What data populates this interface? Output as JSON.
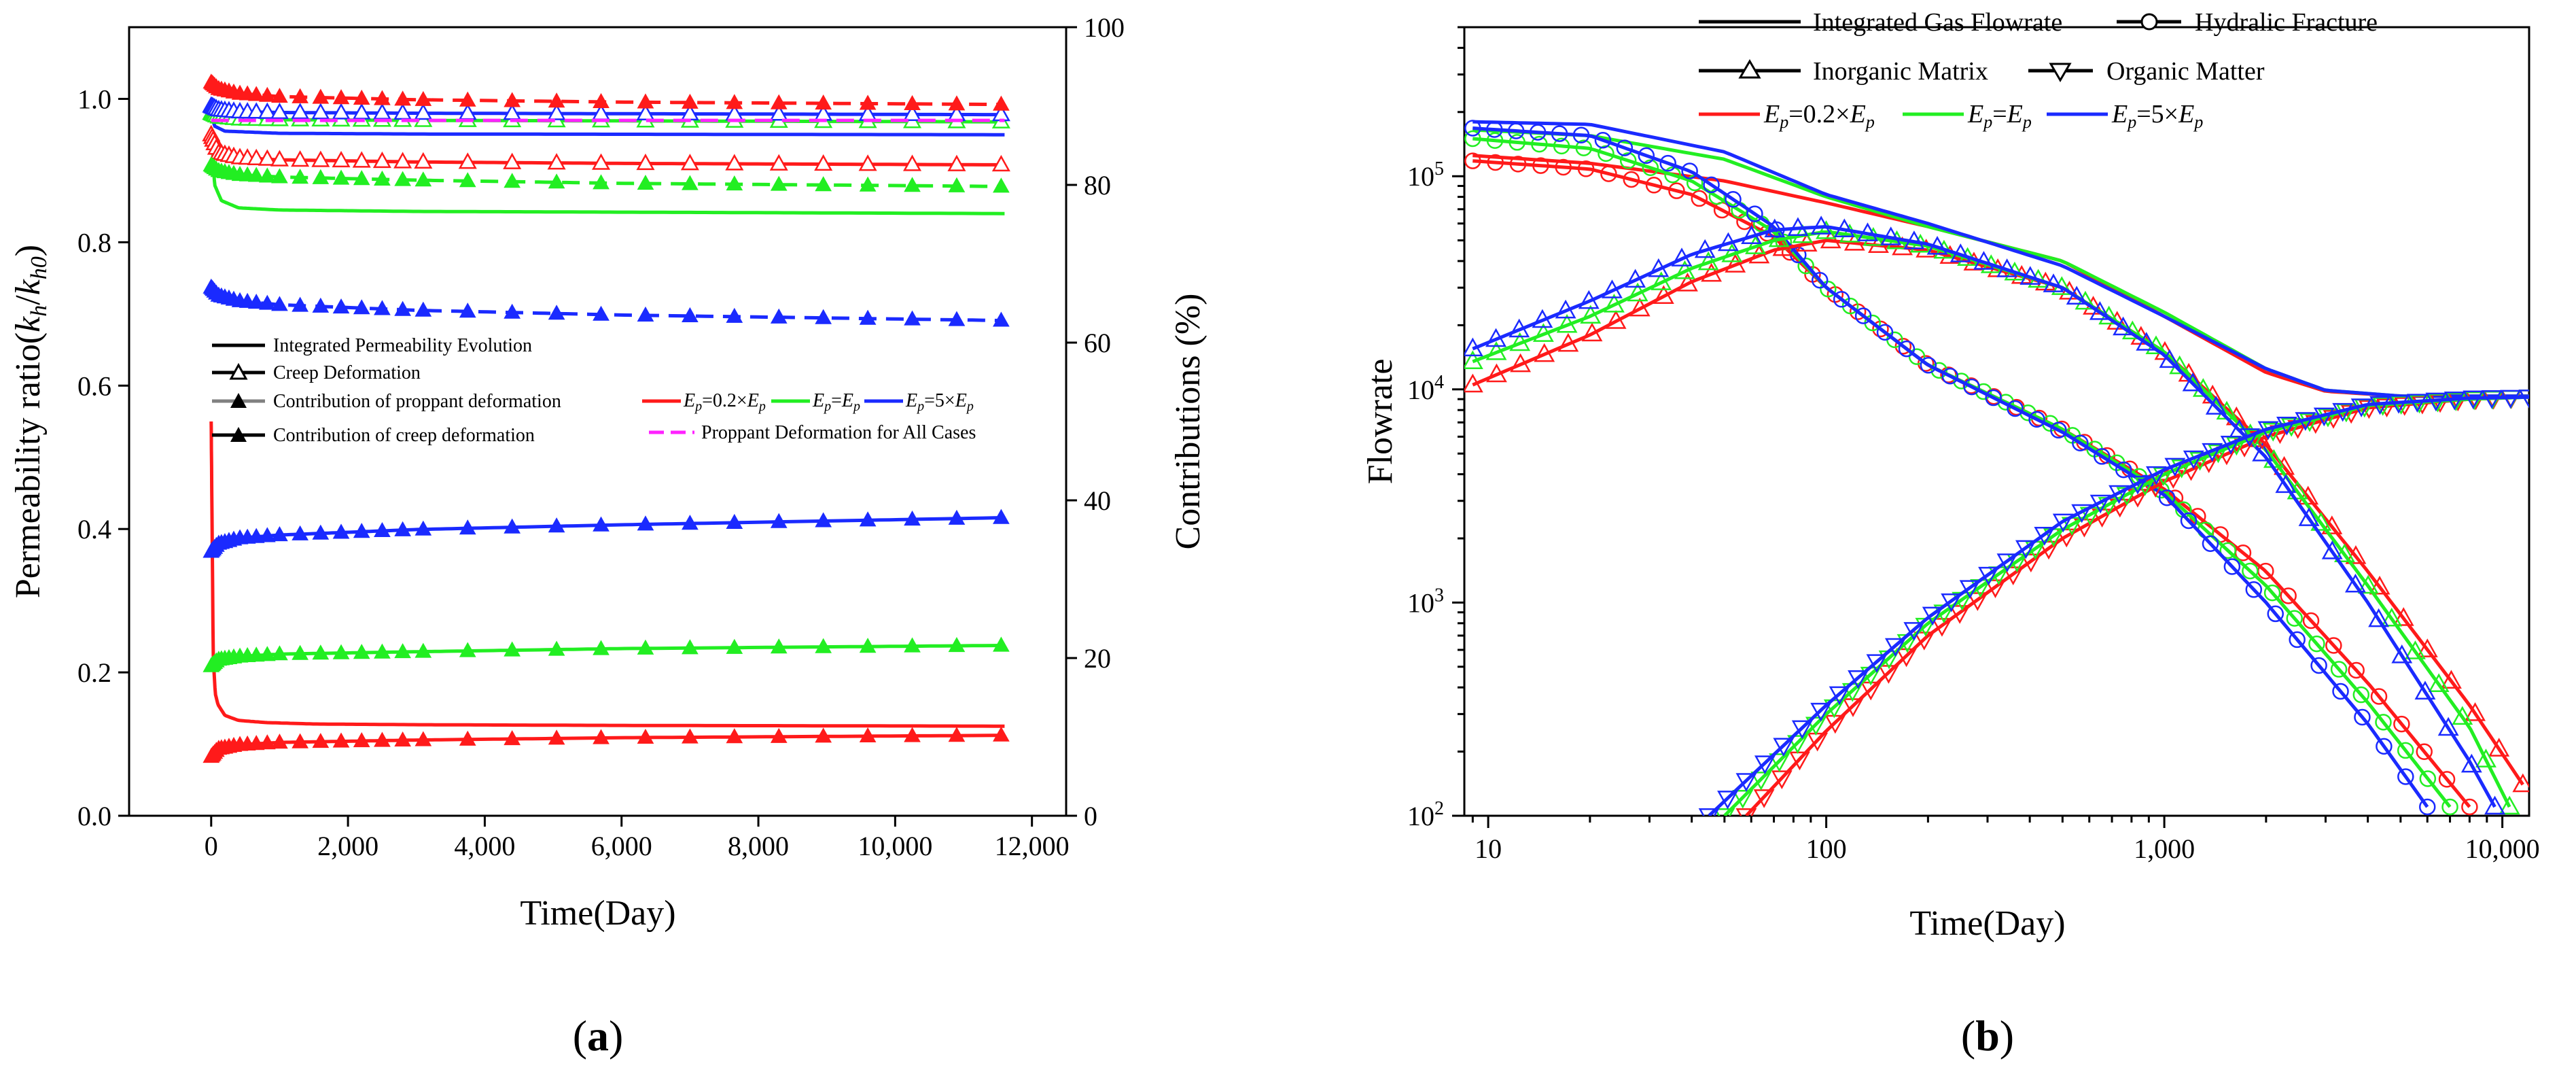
{
  "colors": {
    "red": "#ff1a1a",
    "green": "#22ee22",
    "blue": "#1a2aff",
    "magenta": "#ff22ff",
    "gray": "#808080",
    "black": "#000000"
  },
  "chart_data": [
    {
      "type": "line",
      "panel_label": "a",
      "xlabel": "Time(Day)",
      "ylabel_left": "Permeability ratio(k_h/k_h0)",
      "ylabel_left_parts": [
        "Permeability ratio(",
        "k",
        "h",
        "/",
        "k",
        "h0",
        ")"
      ],
      "ylabel_right": "Contributions (%)",
      "xlim": [
        -1200,
        12500
      ],
      "ylim_left": [
        0,
        1.1
      ],
      "ylim_right": [
        0,
        100
      ],
      "xticks": [
        0,
        2000,
        4000,
        6000,
        8000,
        10000,
        12000
      ],
      "xtick_labels": [
        "0",
        "2,000",
        "4,000",
        "6,000",
        "8,000",
        "10,000",
        "12,000"
      ],
      "yticks_left": [
        0.0,
        0.2,
        0.4,
        0.6,
        0.8,
        1.0
      ],
      "ytick_labels_left": [
        "0.0",
        "0.2",
        "0.4",
        "0.6",
        "0.8",
        "1.0"
      ],
      "yticks_right": [
        0,
        20,
        40,
        60,
        80,
        100
      ],
      "ytick_labels_right": [
        "0",
        "20",
        "40",
        "60",
        "80",
        "100"
      ],
      "legend_style": [
        {
          "label": "Integrated Permeability Evolution",
          "style": "solid"
        },
        {
          "label": "Creep Deformation",
          "style": "open-triangle"
        },
        {
          "label": "Contribution of proppant deformation",
          "style": "gray-filled-triangle"
        },
        {
          "label": "Contribution of creep deformation",
          "style": "filled-triangle"
        }
      ],
      "legend_cases": [
        {
          "label": "E_p=0.2×E_p",
          "parts": [
            "E",
            "p",
            "=0.2×",
            "E",
            "p"
          ],
          "color": "#ff1a1a"
        },
        {
          "label": "E_p=E_p",
          "parts": [
            "E",
            "p",
            "=",
            "E",
            "p"
          ],
          "color": "#22ee22"
        },
        {
          "label": "E_p=5×E_p",
          "parts": [
            "E",
            "p",
            "=5×",
            "E",
            "p"
          ],
          "color": "#1a2aff"
        }
      ],
      "legend_extra": {
        "label": "Proppant Deformation for All Cases",
        "color": "#ff22ff"
      },
      "series": [
        {
          "name": "Integrated Permeability Evolution (0.2×)",
          "color": "#ff1a1a",
          "axis": "left",
          "marker": "none",
          "dash": false,
          "x": [
            0,
            30,
            60,
            100,
            200,
            400,
            800,
            1500,
            3000,
            6000,
            11600
          ],
          "y": [
            0.55,
            0.22,
            0.17,
            0.155,
            0.14,
            0.133,
            0.13,
            0.128,
            0.127,
            0.126,
            0.125
          ]
        },
        {
          "name": "Integrated Permeability Evolution (1×)",
          "color": "#22ee22",
          "axis": "left",
          "marker": "none",
          "dash": false,
          "x": [
            0,
            50,
            150,
            400,
            1000,
            3000,
            6000,
            11600
          ],
          "y": [
            0.96,
            0.88,
            0.858,
            0.848,
            0.845,
            0.843,
            0.842,
            0.84
          ]
        },
        {
          "name": "Integrated Permeability Evolution (5×)",
          "color": "#1a2aff",
          "axis": "left",
          "marker": "none",
          "dash": false,
          "x": [
            0,
            50,
            200,
            1000,
            3000,
            11600
          ],
          "y": [
            0.98,
            0.962,
            0.955,
            0.952,
            0.951,
            0.95
          ]
        },
        {
          "name": "Creep Deformation (0.2×)",
          "color": "#ff1a1a",
          "axis": "left",
          "marker": "open-triangle",
          "dash": false,
          "x": [
            0,
            100,
            400,
            1000,
            3000,
            6000,
            11600
          ],
          "y": [
            0.95,
            0.925,
            0.918,
            0.915,
            0.912,
            0.91,
            0.908
          ]
        },
        {
          "name": "Creep Deformation (1×)",
          "color": "#22ee22",
          "axis": "left",
          "marker": "open-triangle",
          "dash": false,
          "x": [
            0,
            100,
            400,
            1000,
            3000,
            11600
          ],
          "y": [
            0.98,
            0.975,
            0.972,
            0.971,
            0.97,
            0.968
          ]
        },
        {
          "name": "Creep Deformation (5×)",
          "color": "#1a2aff",
          "axis": "left",
          "marker": "open-triangle",
          "dash": false,
          "x": [
            0,
            100,
            400,
            1000,
            3000,
            11600
          ],
          "y": [
            0.99,
            0.985,
            0.982,
            0.981,
            0.98,
            0.978
          ]
        },
        {
          "name": "Contribution of proppant deformation (0.2×)",
          "color": "#ff1a1a",
          "axis": "right",
          "marker": "filled-triangle",
          "dash": true,
          "x": [
            0,
            100,
            400,
            1000,
            3000,
            6000,
            11600
          ],
          "y": [
            93,
            92.2,
            91.6,
            91.2,
            90.8,
            90.5,
            90.2
          ]
        },
        {
          "name": "Contribution of proppant deformation (1×)",
          "color": "#22ee22",
          "axis": "right",
          "marker": "filled-triangle",
          "dash": true,
          "x": [
            0,
            100,
            400,
            1000,
            3000,
            6000,
            11600
          ],
          "y": [
            82.5,
            81.8,
            81.3,
            81.0,
            80.6,
            80.2,
            79.8
          ]
        },
        {
          "name": "Contribution of proppant deformation (5×)",
          "color": "#1a2aff",
          "axis": "right",
          "marker": "filled-triangle",
          "dash": true,
          "x": [
            0,
            100,
            400,
            1000,
            3000,
            6000,
            11600
          ],
          "y": [
            67,
            66,
            65.3,
            64.8,
            64.1,
            63.5,
            62.8
          ]
        },
        {
          "name": "Contribution of creep deformation (0.2×)",
          "color": "#ff1a1a",
          "axis": "right",
          "marker": "filled-triangle",
          "dash": false,
          "x": [
            0,
            100,
            400,
            1000,
            3000,
            6000,
            11600
          ],
          "y": [
            7.5,
            8.5,
            9.0,
            9.3,
            9.6,
            9.9,
            10.2
          ]
        },
        {
          "name": "Contribution of creep deformation (1×)",
          "color": "#22ee22",
          "axis": "right",
          "marker": "filled-triangle",
          "dash": false,
          "x": [
            0,
            100,
            400,
            1000,
            3000,
            6000,
            11600
          ],
          "y": [
            19,
            19.8,
            20.2,
            20.5,
            20.8,
            21.2,
            21.6
          ]
        },
        {
          "name": "Contribution of creep deformation (5×)",
          "color": "#1a2aff",
          "axis": "right",
          "marker": "filled-triangle",
          "dash": false,
          "x": [
            0,
            100,
            400,
            1000,
            3000,
            6000,
            11600
          ],
          "y": [
            33.5,
            34.5,
            35.2,
            35.6,
            36.3,
            36.9,
            37.8
          ]
        },
        {
          "name": "Proppant Deformation for All Cases",
          "color": "#ff22ff",
          "axis": "left",
          "marker": "none",
          "dash": true,
          "x": [
            0,
            11600
          ],
          "y": [
            0.97,
            0.97
          ]
        }
      ]
    },
    {
      "type": "line",
      "panel_label": "b",
      "xlabel": "Time(Day)",
      "ylabel": "Flowrate",
      "xscale": "log",
      "yscale": "log",
      "xlim": [
        8.5,
        12000
      ],
      "ylim": [
        100,
        500000
      ],
      "xticks": [
        10,
        100,
        1000,
        10000
      ],
      "xtick_labels": [
        "10",
        "100",
        "1,000",
        "10,000"
      ],
      "yticks": [
        100,
        1000,
        10000,
        100000
      ],
      "ytick_labels": [
        [
          "10",
          "2"
        ],
        [
          "10",
          "3"
        ],
        [
          "10",
          "4"
        ],
        [
          "10",
          "5"
        ]
      ],
      "legend_style": [
        {
          "label": "Integrated Gas Flowrate",
          "style": "solid"
        },
        {
          "label": "Hydralic Fracture",
          "style": "open-circle"
        },
        {
          "label": "Inorganic Matrix",
          "style": "open-triangle-up"
        },
        {
          "label": "Organic Matter",
          "style": "open-triangle-down"
        }
      ],
      "legend_cases": [
        {
          "label": "E_p=0.2×E_p",
          "parts": [
            "E",
            "p",
            "=0.2×",
            "E",
            "p"
          ],
          "color": "#ff1a1a"
        },
        {
          "label": "E_p=E_p",
          "parts": [
            "E",
            "p",
            "=",
            "E",
            "p"
          ],
          "color": "#22ee22"
        },
        {
          "label": "E_p=5×E_p",
          "parts": [
            "E",
            "p",
            "=5×",
            "E",
            "p"
          ],
          "color": "#1a2aff"
        }
      ],
      "series": [
        {
          "name": "Integrated Gas Flowrate (0.2×)",
          "color": "#ff1a1a",
          "marker": "none",
          "x": [
            9,
            20,
            50,
            100,
            200,
            500,
            1000,
            2000,
            3000,
            5000,
            12000
          ],
          "y": [
            125000,
            115000,
            95000,
            75000,
            58000,
            40000,
            22000,
            12000,
            9800,
            9300,
            9300
          ]
        },
        {
          "name": "Integrated Gas Flowrate (1×)",
          "color": "#22ee22",
          "marker": "none",
          "x": [
            9,
            20,
            50,
            100,
            200,
            500,
            1000,
            2000,
            3000,
            5000,
            12000
          ],
          "y": [
            165000,
            155000,
            120000,
            80000,
            58000,
            40000,
            23000,
            12500,
            9900,
            9300,
            9300
          ]
        },
        {
          "name": "Integrated Gas Flowrate (5×)",
          "color": "#1a2aff",
          "marker": "none",
          "x": [
            9,
            20,
            50,
            100,
            200,
            500,
            1000,
            2000,
            3000,
            5000,
            12000
          ],
          "y": [
            180000,
            175000,
            130000,
            82000,
            60000,
            38000,
            22000,
            12500,
            9900,
            9300,
            9300
          ]
        },
        {
          "name": "Hydralic Fracture (0.2×)",
          "color": "#ff1a1a",
          "marker": "circle",
          "x": [
            9,
            20,
            40,
            70,
            100,
            200,
            500,
            1000,
            2000,
            4000,
            8000
          ],
          "y": [
            118000,
            108000,
            82000,
            52000,
            30000,
            13000,
            6500,
            3400,
            1400,
            420,
            110
          ]
        },
        {
          "name": "Hydralic Fracture (1×)",
          "color": "#22ee22",
          "marker": "circle",
          "x": [
            9,
            20,
            40,
            70,
            100,
            200,
            500,
            1000,
            2000,
            4000,
            7000
          ],
          "y": [
            150000,
            135000,
            95000,
            55000,
            30000,
            13000,
            6500,
            3300,
            1200,
            340,
            110
          ]
        },
        {
          "name": "Hydralic Fracture (5×)",
          "color": "#1a2aff",
          "marker": "circle",
          "x": [
            9,
            20,
            40,
            70,
            100,
            200,
            500,
            1000,
            2000,
            4000,
            6000
          ],
          "y": [
            168000,
            155000,
            105000,
            58000,
            30000,
            13000,
            6300,
            3200,
            1000,
            270,
            110
          ]
        },
        {
          "name": "Inorganic Matrix (0.2×)",
          "color": "#ff1a1a",
          "marker": "triangle-up",
          "x": [
            9,
            20,
            40,
            70,
            100,
            200,
            500,
            1000,
            2000,
            4000,
            8000,
            11500
          ],
          "y": [
            10500,
            18000,
            32000,
            45000,
            50000,
            45000,
            30000,
            15000,
            5500,
            1400,
            330,
            140
          ]
        },
        {
          "name": "Inorganic Matrix (1×)",
          "color": "#22ee22",
          "marker": "triangle-up",
          "x": [
            9,
            20,
            40,
            70,
            100,
            200,
            500,
            1000,
            2000,
            4000,
            8000,
            10500
          ],
          "y": [
            13500,
            22000,
            37000,
            50000,
            55000,
            47000,
            30000,
            15000,
            5200,
            1200,
            260,
            110
          ]
        },
        {
          "name": "Inorganic Matrix (5×)",
          "color": "#1a2aff",
          "marker": "triangle-up",
          "x": [
            9,
            20,
            40,
            70,
            100,
            200,
            500,
            1000,
            2000,
            4000,
            8000,
            9500
          ],
          "y": [
            15500,
            26000,
            43000,
            56000,
            58000,
            48000,
            30000,
            14500,
            4800,
            1000,
            180,
            110
          ]
        },
        {
          "name": "Organic Matter (0.2×)",
          "color": "#ff1a1a",
          "marker": "triangle-down",
          "x": [
            58,
            100,
            200,
            500,
            1000,
            2000,
            4000,
            8000,
            12000
          ],
          "y": [
            100,
            250,
            700,
            2000,
            3700,
            6000,
            8200,
            9000,
            9200
          ]
        },
        {
          "name": "Organic Matter (1×)",
          "color": "#22ee22",
          "marker": "triangle-down",
          "x": [
            50,
            100,
            200,
            500,
            1000,
            2000,
            4000,
            8000,
            12000
          ],
          "y": [
            100,
            300,
            800,
            2200,
            4000,
            6300,
            8400,
            9000,
            9200
          ]
        },
        {
          "name": "Organic Matter (5×)",
          "color": "#1a2aff",
          "marker": "triangle-down",
          "x": [
            45,
            100,
            200,
            500,
            1000,
            2000,
            4000,
            8000,
            12000
          ],
          "y": [
            100,
            330,
            850,
            2400,
            4200,
            6500,
            8500,
            9100,
            9200
          ]
        }
      ]
    }
  ]
}
